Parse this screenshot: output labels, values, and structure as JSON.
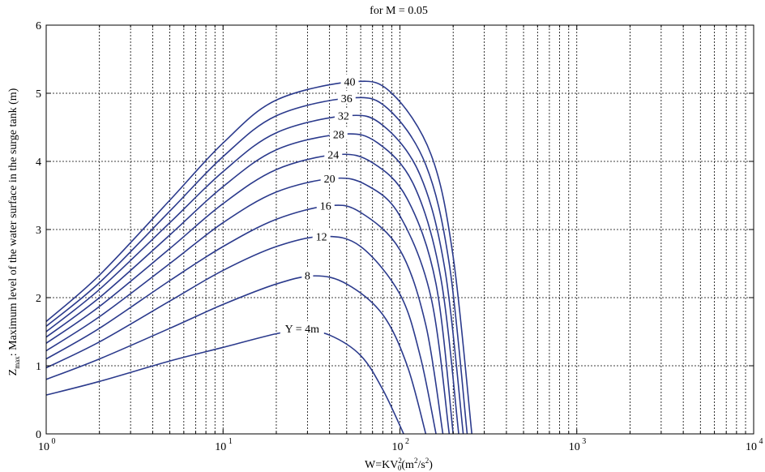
{
  "chart_data": {
    "type": "line",
    "title": "for M = 0.05",
    "xlabel": {
      "main": "W=KV",
      "sub": "0",
      "sup": "2",
      "rest": "(m",
      "sup2": "2",
      "rest2": "/s",
      "sup3": "2",
      "end": ")"
    },
    "ylabel": {
      "main": "Z",
      "sub": "max",
      "rest": ": Maximum level of the water surface in the surge tank (m)"
    },
    "x_scale": "log",
    "xlim": [
      1,
      10000
    ],
    "ylim": [
      0,
      6
    ],
    "grid": true,
    "x_ticks": [
      {
        "value": 1,
        "base": "10",
        "exp": "0"
      },
      {
        "value": 10,
        "base": "10",
        "exp": "1"
      },
      {
        "value": 100,
        "base": "10",
        "exp": "2"
      },
      {
        "value": 1000,
        "base": "10",
        "exp": "3"
      },
      {
        "value": 10000,
        "base": "10",
        "exp": "4"
      }
    ],
    "y_ticks": [
      "0",
      "1",
      "2",
      "3",
      "4",
      "5",
      "6"
    ],
    "series": [
      {
        "name": "Y = 4m",
        "label_at": [
          28,
          1.55
        ],
        "x": [
          1,
          2,
          5,
          10,
          20,
          28,
          40,
          60,
          80,
          105
        ],
        "y": [
          0.57,
          0.77,
          1.07,
          1.27,
          1.47,
          1.52,
          1.45,
          1.15,
          0.65,
          0.0
        ]
      },
      {
        "name": "8",
        "label_at": [
          30,
          2.33
        ],
        "x": [
          1,
          2,
          5,
          10,
          20,
          33,
          50,
          80,
          110,
          140
        ],
        "y": [
          0.8,
          1.1,
          1.55,
          1.9,
          2.2,
          2.32,
          2.2,
          1.75,
          1.0,
          0.0
        ]
      },
      {
        "name": "12",
        "label_at": [
          36,
          2.9
        ],
        "x": [
          1,
          2,
          5,
          10,
          20,
          37,
          60,
          100,
          130,
          160
        ],
        "y": [
          0.97,
          1.35,
          1.95,
          2.4,
          2.75,
          2.9,
          2.75,
          2.05,
          1.15,
          0.0
        ]
      },
      {
        "name": "16",
        "label_at": [
          38,
          3.35
        ],
        "x": [
          1,
          2,
          5,
          10,
          20,
          40,
          60,
          100,
          140,
          175
        ],
        "y": [
          1.1,
          1.55,
          2.25,
          2.75,
          3.15,
          3.35,
          3.25,
          2.7,
          1.6,
          0.0
        ]
      },
      {
        "name": "20",
        "label_at": [
          40,
          3.75
        ],
        "x": [
          1,
          2,
          5,
          10,
          20,
          42,
          65,
          100,
          150,
          190
        ],
        "y": [
          1.22,
          1.72,
          2.5,
          3.1,
          3.55,
          3.75,
          3.65,
          3.2,
          2.0,
          0.0
        ]
      },
      {
        "name": "24",
        "label_at": [
          42,
          4.1
        ],
        "x": [
          1,
          2,
          5,
          10,
          20,
          44,
          70,
          110,
          160,
          200
        ],
        "y": [
          1.33,
          1.87,
          2.72,
          3.38,
          3.88,
          4.1,
          3.98,
          3.45,
          2.2,
          0.0
        ]
      },
      {
        "name": "28",
        "label_at": [
          45,
          4.4
        ],
        "x": [
          1,
          2,
          5,
          10,
          20,
          47,
          75,
          120,
          170,
          215
        ],
        "y": [
          1.42,
          2.0,
          2.92,
          3.63,
          4.17,
          4.4,
          4.27,
          3.65,
          2.3,
          0.0
        ]
      },
      {
        "name": "32",
        "label_at": [
          48,
          4.67
        ],
        "x": [
          1,
          2,
          5,
          10,
          20,
          50,
          80,
          130,
          180,
          228
        ],
        "y": [
          1.5,
          2.12,
          3.1,
          3.85,
          4.42,
          4.67,
          4.53,
          3.8,
          2.4,
          0.0
        ]
      },
      {
        "name": "36",
        "label_at": [
          50,
          4.93
        ],
        "x": [
          1,
          2,
          5,
          10,
          20,
          52,
          85,
          140,
          190,
          240
        ],
        "y": [
          1.58,
          2.22,
          3.27,
          4.07,
          4.67,
          4.93,
          4.78,
          3.95,
          2.5,
          0.0
        ]
      },
      {
        "name": "40",
        "label_at": [
          52,
          5.17
        ],
        "x": [
          1,
          2,
          5,
          10,
          20,
          55,
          90,
          150,
          200,
          255
        ],
        "y": [
          1.65,
          2.33,
          3.43,
          4.27,
          4.9,
          5.17,
          5.0,
          4.1,
          2.6,
          0.0
        ]
      }
    ],
    "colors": {
      "curve": "#2b3a8c",
      "grid": "#000000"
    }
  }
}
